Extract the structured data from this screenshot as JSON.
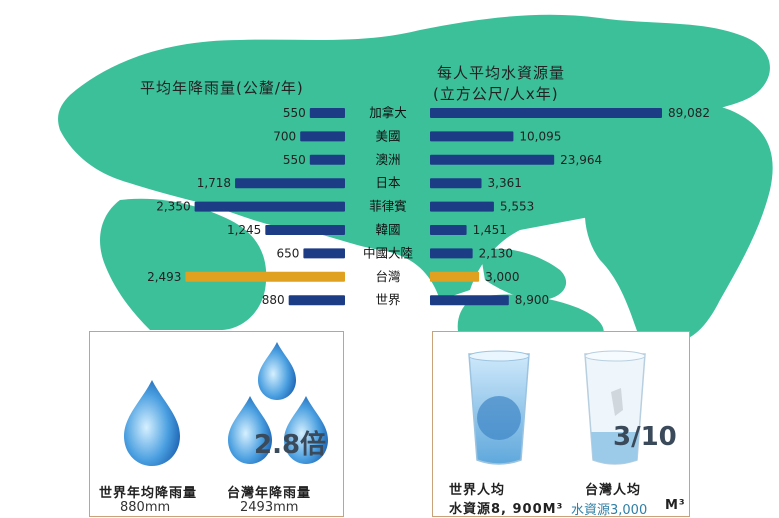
{
  "chart_data": {
    "type": "bar",
    "categories": [
      "加拿大",
      "美國",
      "澳洲",
      "日本",
      "菲律賓",
      "韓國",
      "中國大陸",
      "台灣",
      "世界"
    ],
    "series": [
      {
        "name": "平均年降雨量(公釐/年)",
        "values": [
          550,
          700,
          550,
          1718,
          2350,
          1245,
          650,
          2493,
          880
        ],
        "labels": [
          "550",
          "700",
          "550",
          "1,718",
          "2,350",
          "1,245",
          "650",
          "2,493",
          "880"
        ]
      },
      {
        "name": "每人平均水資源量(立方公尺/人x年)",
        "values": [
          89082,
          10095,
          23964,
          3361,
          5553,
          1451,
          2130,
          3000,
          8900
        ],
        "labels": [
          "89,082",
          "10,095",
          "23,964",
          "3,361",
          "5,553",
          "1,451",
          "2,130",
          "3,000",
          "8,900"
        ]
      }
    ],
    "highlight": "台灣",
    "colors": {
      "bar": "#1d3c86",
      "highlight": "#e0a020",
      "map": "#3cc09a"
    }
  },
  "titles": {
    "rain": "平均年降雨量(公釐/年)",
    "water_line1": "每人平均水資源量",
    "water_line2": "(立方公尺/人x年)"
  },
  "panels": {
    "left": {
      "world_caption": "世界年均降雨量",
      "world_value": "880mm",
      "taiwan_caption": "台灣年降雨量",
      "taiwan_value": "2493mm",
      "ratio": "2.8倍"
    },
    "right": {
      "world_caption_line1": "世界人均",
      "world_caption_line2": "水資源8, 900M³",
      "taiwan_caption_line1": "台灣人均",
      "taiwan_caption_line2": "水資源3,000",
      "taiwan_unit": "M³",
      "ratio": "3/10"
    }
  }
}
